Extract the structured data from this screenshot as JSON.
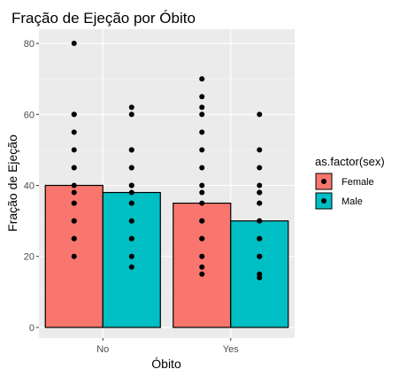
{
  "chart_data": {
    "type": "bar",
    "title": "Fração de Ejeção por Óbito",
    "xlabel": "Óbito",
    "ylabel": "Fração de Ejeção",
    "categories": [
      "No",
      "Yes"
    ],
    "ylim": [
      -3,
      84
    ],
    "yticks": [
      0,
      20,
      40,
      60,
      80
    ],
    "grid": true,
    "legend": {
      "title": "as.factor(sex)",
      "position": "right"
    },
    "series": [
      {
        "name": "Female",
        "color": "#F8766D",
        "values": [
          40,
          35
        ],
        "points": [
          [
            80,
            60,
            60,
            55,
            50,
            45,
            45,
            40,
            38,
            35,
            35,
            30,
            30,
            25,
            25,
            20
          ],
          [
            70,
            65,
            62,
            60,
            55,
            50,
            45,
            40,
            38,
            35,
            30,
            30,
            25,
            25,
            20,
            17,
            15
          ]
        ]
      },
      {
        "name": "Male",
        "color": "#00BFC4",
        "values": [
          38,
          30
        ],
        "points": [
          [
            62,
            60,
            50,
            50,
            45,
            45,
            40,
            40,
            38,
            35,
            35,
            30,
            30,
            25,
            25,
            20,
            17
          ],
          [
            60,
            50,
            45,
            40,
            38,
            38,
            35,
            35,
            30,
            30,
            25,
            25,
            20,
            20,
            15,
            14
          ]
        ]
      }
    ]
  }
}
